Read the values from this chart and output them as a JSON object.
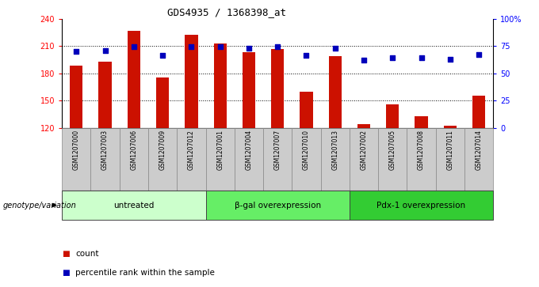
{
  "title": "GDS4935 / 1368398_at",
  "samples": [
    "GSM1207000",
    "GSM1207003",
    "GSM1207006",
    "GSM1207009",
    "GSM1207012",
    "GSM1207001",
    "GSM1207004",
    "GSM1207007",
    "GSM1207010",
    "GSM1207013",
    "GSM1207002",
    "GSM1207005",
    "GSM1207008",
    "GSM1207011",
    "GSM1207014"
  ],
  "counts": [
    188,
    193,
    227,
    175,
    222,
    213,
    203,
    207,
    160,
    199,
    124,
    146,
    133,
    122,
    155
  ],
  "percentile_ranks": [
    70,
    71,
    74,
    66,
    74,
    74,
    73,
    74,
    66,
    73,
    62,
    64,
    64,
    63,
    67
  ],
  "groups": [
    {
      "label": "untreated",
      "start": 0,
      "end": 5,
      "color": "#ccffcc"
    },
    {
      "label": "β-gal overexpression",
      "start": 5,
      "end": 10,
      "color": "#66ee66"
    },
    {
      "label": "Pdx-1 overexpression",
      "start": 10,
      "end": 15,
      "color": "#33cc33"
    }
  ],
  "bar_color": "#cc1100",
  "dot_color": "#0000bb",
  "ylim_left": [
    120,
    240
  ],
  "ylim_right": [
    0,
    100
  ],
  "yticks_left": [
    120,
    150,
    180,
    210,
    240
  ],
  "yticks_right": [
    0,
    25,
    50,
    75,
    100
  ],
  "ytick_labels_right": [
    "0",
    "25",
    "50",
    "75",
    "100%"
  ],
  "hline_values": [
    150,
    180,
    210
  ],
  "bar_width": 0.45,
  "dot_size": 22,
  "background_color": "#ffffff",
  "sample_bg_color": "#cccccc",
  "genotype_label": "genotype/variation",
  "legend_count": "count",
  "legend_percentile": "percentile rank within the sample"
}
